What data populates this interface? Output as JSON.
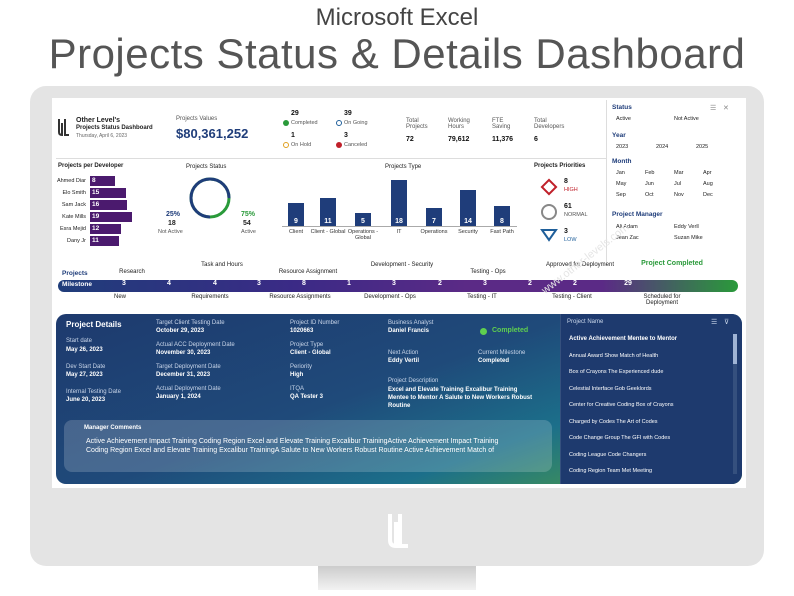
{
  "header": {
    "line1": "Microsoft Excel",
    "line2": "Projects Status & Details Dashboard"
  },
  "brand": {
    "company": "Other Level's",
    "dashboard_title": "Projects Status Dashboard",
    "date": "Thursday, April 6, 2023"
  },
  "kpis": {
    "projects_values_label": "Projects Values",
    "projects_values": "$80,361,252",
    "completed_count": "29",
    "completed_label": "Completed",
    "ongoing_count": "39",
    "ongoing_label": "On Going",
    "onhold_count": "1",
    "onhold_label": "On Hold",
    "canceled_count": "3",
    "canceled_label": "Canceled",
    "total_projects_label": "Total Projects",
    "total_projects": "72",
    "working_hours_label": "Working Hours",
    "working_hours": "79,612",
    "fte_saving_label": "FTE Saving",
    "fte_saving": "11,376",
    "total_developers_label": "Total Developers",
    "total_developers": "6"
  },
  "slicers": {
    "status_title": "Status",
    "status_items": [
      "Active",
      "Not Active"
    ],
    "year_title": "Year",
    "year_items": [
      "2023",
      "2024",
      "2025"
    ],
    "month_title": "Month",
    "month_items": [
      "Jan",
      "Feb",
      "Mar",
      "Apr",
      "May",
      "Jun",
      "Jul",
      "Aug",
      "Sep",
      "Oct",
      "Nov",
      "Dec"
    ],
    "manager_title": "Project Manager",
    "manager_items": [
      "Ali Adam",
      "Eddy Verll",
      "Jean Zac",
      "Suzan Mike"
    ]
  },
  "dev_chart": {
    "title": "Projects per Developer",
    "names": [
      "Ahmed Diar",
      "Elo Smith",
      "Sam Jack",
      "Kate Mills",
      "Esra Mejid",
      "Dany Jr"
    ],
    "values": [
      8,
      15,
      16,
      19,
      12,
      11
    ]
  },
  "status_chart": {
    "title": "Projects Status",
    "not_active_pct": "25%",
    "not_active_count": "18",
    "not_active_label": "Not Active",
    "active_pct": "75%",
    "active_count": "54",
    "active_label": "Active",
    "center": ""
  },
  "chart_data": {
    "type": "bar",
    "title": "Projects Type",
    "categories": [
      "Client",
      "Client - Global",
      "Operations - Global",
      "IT",
      "Operations",
      "Security",
      "Fast Path"
    ],
    "values": [
      9,
      11,
      5,
      18,
      7,
      14,
      8
    ],
    "ylim": [
      0,
      18
    ]
  },
  "priorities": {
    "title": "Projects Priorities",
    "high_count": "8",
    "high_label": "HIGH",
    "normal_count": "61",
    "normal_label": "NORMAL",
    "low_count": "3",
    "low_label": "LOW"
  },
  "milestones": {
    "projects_label": "Projects",
    "milestone_label": "Milestone",
    "top_labels": [
      "Research",
      "Task and Hours",
      "Resource Assignment",
      "Development - Security",
      "Testing - Ops",
      "Approved for Deployment",
      "Project Completed"
    ],
    "bottom_labels": [
      "New",
      "Requirements",
      "Resource Assignments",
      "Development - Ops",
      "Testing - IT",
      "Testing - Client",
      "Scheduled for Deployment"
    ],
    "counts": [
      "3",
      "4",
      "4",
      "3",
      "8",
      "1",
      "3",
      "2",
      "3",
      "2",
      "2",
      "29"
    ]
  },
  "details": {
    "title": "Project Details",
    "start_date_label": "Start date",
    "start_date": "May 26, 2023",
    "dev_start_label": "Dev Start Date",
    "dev_start": "May 27, 2023",
    "internal_testing_label": "Internal Testing Date",
    "internal_testing": "June 20, 2023",
    "target_client_label": "Target Client Testing Date",
    "target_client": "October 29, 2023",
    "actual_acc_label": "Actual ACC Deployment Date",
    "actual_acc": "November 30, 2023",
    "target_deploy_label": "Target Deployment Date",
    "target_deploy": "December 31, 2023",
    "actual_deploy_label": "Actual Deployment Date",
    "actual_deploy": "January 1, 2024",
    "project_id_label": "Project ID Number",
    "project_id": "1020663",
    "project_type_label": "Project Type",
    "project_type": "Client - Global",
    "priority_label": "Periority",
    "priority": "High",
    "itqa_label": "ITQA",
    "itqa": "QA Tester 3",
    "analyst_label": "Business Analyst",
    "analyst": "Daniel Francis",
    "status": "Completed",
    "next_action_label": "Next Action",
    "next_action": "Eddy Vertil",
    "current_milestone_label": "Current Milestone",
    "current_milestone": "Completed",
    "description_label": "Project Description",
    "description": "Excel and Elevate Training Excalibur Training Mentee to Mentor A Salute to New Workers Robust Routine",
    "comments_label": "Manager Comments",
    "comments": "Active Achievement Impact Training Coding Region Excel and Elevate Training Excalibur TrainingActive Achievement Impact Training Coding Region Excel and Elevate Training Excalibur TrainingA Salute to New Workers Robust Routine Active Achievement Match of"
  },
  "project_list": {
    "title": "Project Name",
    "items": [
      "Active Achievement Mentee to Mentor",
      "Annual Award Show Match of Health",
      "Box of Crayons The Experienced dude",
      "Celestial Interface Gob Geeklords",
      "Center for Creative Coding Box of Crayons",
      "Charged by Codes The Art of Codes",
      "Code Change Group The GFI with Codes",
      "Coding League Code Changers",
      "Coding Region Team Met Meeting"
    ]
  },
  "watermark": "www.other-levels.com",
  "colors": {
    "navy": "#1f3d7a",
    "purple": "#4b1a6e",
    "green": "#2a9a3a",
    "high": "#c0202a",
    "low": "#1f5f9a"
  }
}
